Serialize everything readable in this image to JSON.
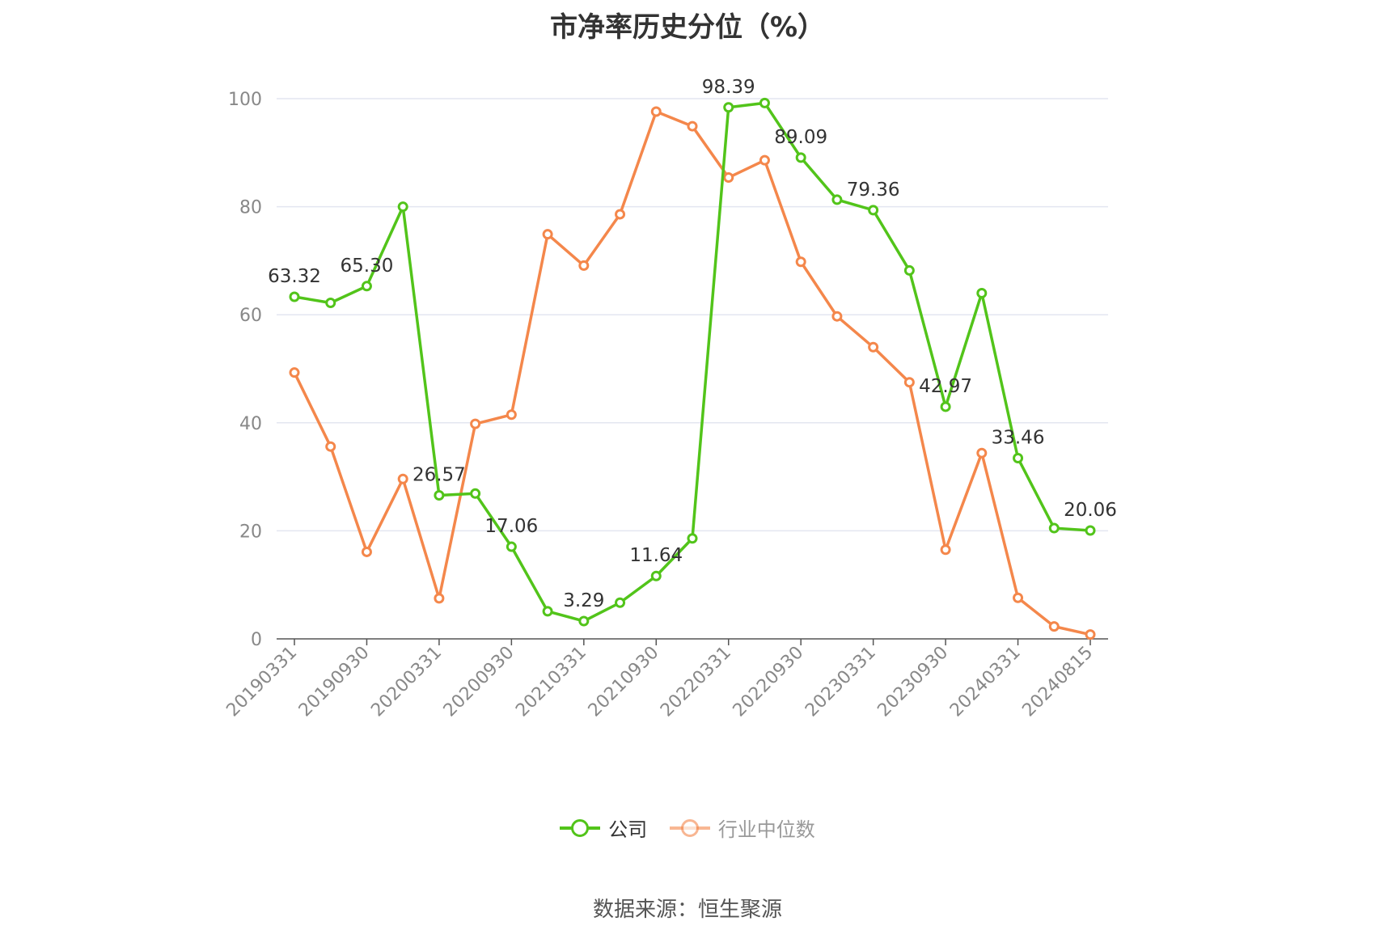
{
  "chart_data": {
    "type": "line",
    "title": "市净率历史分位（%）",
    "xlabel": "",
    "ylabel": "",
    "ylim": [
      0,
      100
    ],
    "yticks": [
      0,
      20,
      40,
      60,
      80,
      100
    ],
    "grid": true,
    "legend_position": "bottom",
    "x": [
      "20190331",
      "20190630",
      "20190930",
      "20191231",
      "20200331",
      "20200630",
      "20200930",
      "20201231",
      "20210331",
      "20210630",
      "20210930",
      "20211231",
      "20220331",
      "20220630",
      "20220930",
      "20221231",
      "20230331",
      "20230630",
      "20230930",
      "20231231",
      "20240331",
      "20240630",
      "20240815"
    ],
    "x_tick_labels": [
      "20190331",
      "20190930",
      "20200331",
      "20200930",
      "20210331",
      "20210930",
      "20220331",
      "20220930",
      "20230331",
      "20230930",
      "20240331",
      "20240815"
    ],
    "series": [
      {
        "name": "公司",
        "color": "#52c41a",
        "values": [
          63.32,
          62.2,
          65.3,
          80.0,
          26.57,
          26.9,
          17.06,
          5.1,
          3.29,
          6.7,
          11.64,
          18.6,
          98.39,
          99.2,
          89.09,
          81.3,
          79.36,
          68.2,
          42.97,
          64.0,
          33.46,
          20.5,
          20.06
        ],
        "data_labels": {
          "0": "63.32",
          "2": "65.30",
          "4": "26.57",
          "6": "17.06",
          "8": "3.29",
          "10": "11.64",
          "12": "98.39",
          "14": "89.09",
          "16": "79.36",
          "18": "42.97",
          "20": "33.46",
          "22": "20.06"
        }
      },
      {
        "name": "行业中位数",
        "color": "#f4874b",
        "values": [
          49.3,
          35.6,
          16.1,
          29.6,
          7.5,
          39.8,
          41.5,
          74.9,
          69.1,
          78.6,
          97.6,
          94.9,
          85.4,
          88.6,
          69.8,
          59.7,
          54.0,
          47.5,
          16.5,
          34.4,
          7.6,
          2.3,
          0.8
        ]
      }
    ]
  },
  "legend": {
    "items": [
      {
        "label": "公司",
        "color": "#52c41a",
        "text_color": "#333333"
      },
      {
        "label": "行业中位数",
        "color": "#f4874b",
        "text_color": "#999999"
      }
    ]
  },
  "source": "数据来源：恒生聚源"
}
